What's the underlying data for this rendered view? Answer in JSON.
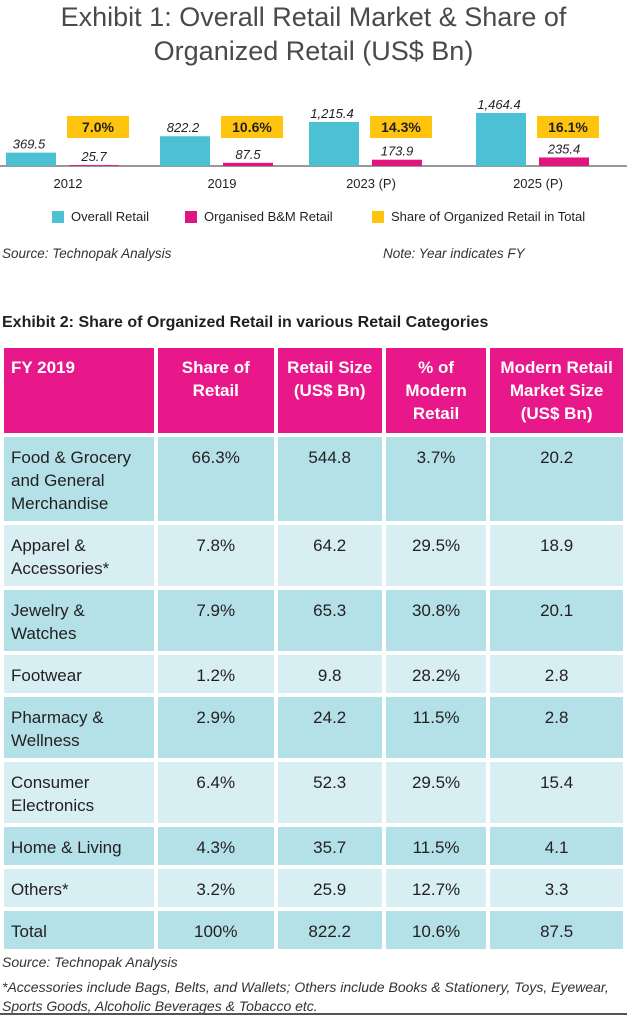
{
  "chart_data": {
    "type": "bar",
    "title": "Exhibit 1: Overall Retail Market & Share of Organized Retail (US$ Bn)",
    "categories": [
      "2012",
      "2019",
      "2023 (P)",
      "2025 (P)"
    ],
    "series": [
      {
        "name": "Overall Retail",
        "values": [
          369.5,
          822.2,
          1215.4,
          1464.4
        ],
        "labels": [
          "369.5",
          "822.2",
          "1,215.4",
          "1,464.4"
        ],
        "color": "#4dc1d4"
      },
      {
        "name": "Organised B&M Retail",
        "values": [
          25.7,
          87.5,
          173.9,
          235.4
        ],
        "labels": [
          "25.7",
          "87.5",
          "173.9",
          "235.4"
        ],
        "color": "#e0157f"
      },
      {
        "name": "Share of Organized Retail in Total",
        "values": [
          7.0,
          10.6,
          14.3,
          16.1
        ],
        "labels": [
          "7.0%",
          "10.6%",
          "14.3%",
          "16.1%"
        ],
        "color": "#fec40e"
      }
    ],
    "legend_position": "bottom",
    "grid": false
  },
  "exhibit1": {
    "title": "Exhibit 1: Overall Retail Market & Share of Organized Retail (US$ Bn)",
    "source": "Source: Technopak Analysis",
    "note": "Note: Year indicates FY"
  },
  "exhibit2": {
    "title": "Exhibit 2: Share of Organized Retail in various Retail Categories",
    "headers": [
      "FY 2019",
      "Share of Retail",
      "Retail Size (US$ Bn)",
      "% of Modern Retail",
      "Modern Retail Market Size (US$ Bn)"
    ],
    "rows": [
      [
        "Food & Grocery and General Merchandise",
        "66.3%",
        "544.8",
        "3.7%",
        "20.2"
      ],
      [
        "Apparel & Accessories*",
        "7.8%",
        "64.2",
        "29.5%",
        "18.9"
      ],
      [
        "Jewelry & Watches",
        "7.9%",
        "65.3",
        "30.8%",
        "20.1"
      ],
      [
        "Footwear",
        "1.2%",
        "9.8",
        "28.2%",
        "2.8"
      ],
      [
        "Pharmacy & Wellness",
        "2.9%",
        "24.2",
        "11.5%",
        "2.8"
      ],
      [
        "Consumer Electronics",
        "6.4%",
        "52.3",
        "29.5%",
        "15.4"
      ],
      [
        "Home & Living",
        "4.3%",
        "35.7",
        "11.5%",
        "4.1"
      ],
      [
        "Others*",
        "3.2%",
        "25.9",
        "12.7%",
        "3.3"
      ],
      [
        "Total",
        "100%",
        "822.2",
        "10.6%",
        "87.5"
      ]
    ],
    "source": "Source: Technopak Analysis",
    "footnote": "*Accessories include Bags, Belts, and Wallets; Others include Books & Stationery, Toys, Eyewear, Sports Goods, Alcoholic Beverages & Tobacco etc."
  },
  "colors": {
    "header_pink": "#e8178a",
    "row_dark": "#b4e0e8",
    "row_light": "#d7eef2"
  }
}
